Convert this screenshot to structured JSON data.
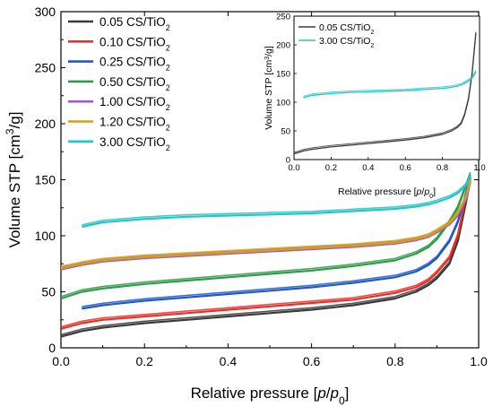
{
  "chart_data": [
    {
      "type": "line",
      "title": "",
      "xlabel": "Relative pressure [p/p0]",
      "ylabel": "Volume STP [cm3/g]",
      "xlim": [
        0.0,
        1.0
      ],
      "ylim": [
        0,
        300
      ],
      "xticks": [
        "0.0",
        "0.2",
        "0.4",
        "0.6",
        "0.8",
        "1.0"
      ],
      "yticks": [
        "0",
        "50",
        "100",
        "150",
        "200",
        "250",
        "300"
      ],
      "legend_position": "top-left",
      "series": [
        {
          "name": "0.05 CS/TiO2",
          "color": "#3a3a3a",
          "x": [
            0.0,
            0.05,
            0.1,
            0.2,
            0.3,
            0.4,
            0.5,
            0.6,
            0.7,
            0.8,
            0.85,
            0.88,
            0.9,
            0.93,
            0.95,
            0.97,
            0.98
          ],
          "y": [
            10,
            15,
            18,
            22,
            25,
            28,
            31,
            34,
            38,
            44,
            50,
            56,
            62,
            75,
            95,
            130,
            150
          ]
        },
        {
          "name": "0.10 CS/TiO2",
          "color": "#e8302a",
          "x": [
            0.0,
            0.05,
            0.1,
            0.2,
            0.3,
            0.4,
            0.5,
            0.6,
            0.7,
            0.8,
            0.85,
            0.88,
            0.9,
            0.93,
            0.95,
            0.97,
            0.98
          ],
          "y": [
            17,
            22,
            25,
            28,
            31,
            34,
            37,
            40,
            43,
            49,
            54,
            60,
            67,
            80,
            100,
            135,
            152
          ]
        },
        {
          "name": "0.25 CS/TiO2",
          "color": "#1f56c8",
          "x": [
            0.05,
            0.1,
            0.2,
            0.3,
            0.4,
            0.5,
            0.6,
            0.7,
            0.8,
            0.85,
            0.88,
            0.9,
            0.93,
            0.95,
            0.97,
            0.98
          ],
          "y": [
            35,
            38,
            42,
            45,
            48,
            51,
            54,
            58,
            63,
            68,
            74,
            80,
            95,
            112,
            138,
            152
          ]
        },
        {
          "name": "0.50 CS/TiO2",
          "color": "#2f9a4a",
          "x": [
            0.0,
            0.05,
            0.1,
            0.2,
            0.3,
            0.4,
            0.5,
            0.6,
            0.7,
            0.8,
            0.85,
            0.88,
            0.9,
            0.93,
            0.95,
            0.97,
            0.98
          ],
          "y": [
            44,
            50,
            53,
            57,
            60,
            63,
            66,
            69,
            73,
            78,
            84,
            90,
            97,
            112,
            125,
            145,
            155
          ]
        },
        {
          "name": "1.00 CS/TiO2",
          "color": "#9b59c9",
          "x": [
            0.0,
            0.05,
            0.1,
            0.2,
            0.3,
            0.4,
            0.5,
            0.6,
            0.7,
            0.8,
            0.85,
            0.88,
            0.9,
            0.93,
            0.95,
            0.97,
            0.98
          ],
          "y": [
            70,
            74,
            77,
            80,
            82,
            84,
            86,
            88,
            90,
            93,
            96,
            99,
            103,
            110,
            118,
            132,
            148
          ]
        },
        {
          "name": "1.20 CS/TiO2",
          "color": "#d4a017",
          "x": [
            0.0,
            0.05,
            0.1,
            0.2,
            0.3,
            0.4,
            0.5,
            0.6,
            0.7,
            0.8,
            0.85,
            0.88,
            0.9,
            0.93,
            0.95,
            0.97,
            0.98
          ],
          "y": [
            71,
            75,
            78,
            81,
            83,
            85,
            87,
            89,
            91,
            94,
            97,
            100,
            104,
            111,
            120,
            135,
            150
          ]
        },
        {
          "name": "3.00 CS/TiO2",
          "color": "#26c4c4",
          "x": [
            0.05,
            0.1,
            0.2,
            0.3,
            0.4,
            0.5,
            0.6,
            0.7,
            0.8,
            0.85,
            0.88,
            0.9,
            0.93,
            0.95,
            0.97,
            0.98
          ],
          "y": [
            108,
            112,
            115,
            117,
            118,
            119,
            120,
            122,
            124,
            126,
            128,
            130,
            134,
            138,
            145,
            153
          ]
        }
      ]
    },
    {
      "type": "line",
      "title": "",
      "xlabel": "Relative pressure [p/p0]",
      "ylabel": "Volume STP [cm3/g]",
      "xlim": [
        0.0,
        1.0
      ],
      "ylim": [
        0,
        250
      ],
      "xticks": [
        "0.0",
        "0.2",
        "0.4",
        "0.6",
        "0.8",
        "1.0"
      ],
      "yticks": [
        "0",
        "50",
        "100",
        "150",
        "200",
        "250"
      ],
      "legend_position": "top-left",
      "series": [
        {
          "name": "0.05 CS/TiO2",
          "color": "#3a3a3a",
          "x": [
            0.0,
            0.05,
            0.1,
            0.2,
            0.3,
            0.4,
            0.5,
            0.6,
            0.7,
            0.8,
            0.85,
            0.88,
            0.9,
            0.92,
            0.94,
            0.96,
            0.97,
            0.98
          ],
          "y": [
            10,
            15,
            18,
            22,
            25,
            28,
            31,
            34,
            38,
            44,
            50,
            56,
            62,
            78,
            105,
            150,
            185,
            220
          ]
        },
        {
          "name": "3.00 CS/TiO2",
          "color": "#26c4c4",
          "x": [
            0.05,
            0.1,
            0.2,
            0.3,
            0.4,
            0.5,
            0.6,
            0.7,
            0.8,
            0.85,
            0.88,
            0.9,
            0.92,
            0.94,
            0.96,
            0.97,
            0.98
          ],
          "y": [
            108,
            112,
            115,
            117,
            118,
            119,
            120,
            122,
            124,
            126,
            128,
            130,
            133,
            137,
            142,
            147,
            153
          ]
        }
      ]
    }
  ]
}
